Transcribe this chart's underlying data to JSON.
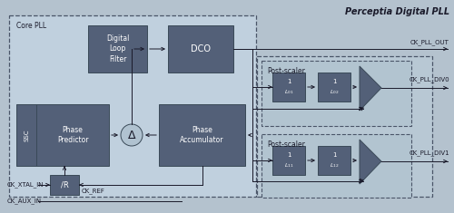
{
  "bg_color": "#b4c2ce",
  "inner_bg": "#c2d0dc",
  "core_pll_bg": "#c0d0de",
  "postscaler_outer_bg": "#b8c8d6",
  "postscaler_inner_bg": "#b8c8d6",
  "block_color": "#536078",
  "block_text_color": "#ffffff",
  "delta_bg": "#b0c2d0",
  "title": "Perceptia Digital PLL",
  "core_pll_label": "Core PLL",
  "dlf_label": "Digital\nLoop\nFilter",
  "dco_label": "DCO",
  "pp_label": "Phase\nPredictor",
  "ssc_label": "SSC",
  "pa_label": "Phase\nAccumulator",
  "r_label": "/R",
  "delta_label": "Δ",
  "ps_label": "Post-scaler",
  "l01": "L_{01}",
  "l02": "L_{02}",
  "l11": "L_{11}",
  "l12": "L_{12}",
  "sig_out": "CK_PLL_OUT",
  "sig_div0": "CK_PLL_DIV0",
  "sig_div1": "CK_PLL_DIV1",
  "sig_xtal": "CK_XTAL_IN",
  "sig_aux": "CK_AUX_IN",
  "sig_ref": "CK_REF",
  "line_color": "#1a1a2a",
  "border_color": "#4a5568",
  "text_dark": "#1a1a2a"
}
